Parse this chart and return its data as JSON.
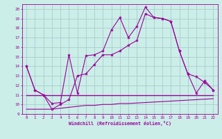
{
  "xlabel": "Windchill (Refroidissement éolien,°C)",
  "background_color": "#cceee8",
  "grid_color": "#aacccc",
  "line_color": "#990099",
  "xlim": [
    -0.5,
    22.5
  ],
  "ylim": [
    9,
    20.5
  ],
  "xticks": [
    0,
    1,
    2,
    3,
    4,
    5,
    6,
    7,
    8,
    9,
    10,
    11,
    12,
    13,
    14,
    15,
    16,
    17,
    18,
    19,
    20,
    21,
    22
  ],
  "yticks": [
    9,
    10,
    11,
    12,
    13,
    14,
    15,
    16,
    17,
    18,
    19,
    20
  ],
  "series1_x": [
    0,
    1,
    2,
    3,
    4,
    5,
    6,
    7,
    8,
    9,
    10,
    11,
    12,
    13,
    14,
    15,
    16,
    17,
    18,
    19,
    20,
    21,
    22
  ],
  "series1_y": [
    14.0,
    11.5,
    11.0,
    10.1,
    10.2,
    15.2,
    11.2,
    15.1,
    15.2,
    15.6,
    17.8,
    19.1,
    17.0,
    18.2,
    20.2,
    19.1,
    19.0,
    18.7,
    15.6,
    13.2,
    12.9,
    12.3,
    11.5
  ],
  "series2_x": [
    0,
    1,
    2,
    3,
    4,
    5,
    6,
    7,
    8,
    9,
    10,
    11,
    12,
    13,
    14,
    15,
    16,
    17,
    18,
    19,
    20,
    21,
    22
  ],
  "series2_y": [
    14.0,
    11.5,
    11.0,
    9.5,
    10.0,
    10.5,
    13.0,
    13.2,
    14.2,
    15.2,
    15.2,
    15.6,
    16.2,
    16.7,
    19.5,
    19.1,
    19.0,
    18.7,
    15.6,
    13.2,
    11.2,
    12.5,
    11.5
  ],
  "series3_x": [
    0,
    1,
    2,
    3,
    4,
    5,
    6,
    7,
    8,
    9,
    10,
    11,
    12,
    13,
    14,
    15,
    16,
    17,
    18,
    19,
    20,
    21,
    22
  ],
  "series3_y": [
    11.0,
    11.0,
    11.0,
    11.0,
    11.0,
    11.0,
    11.0,
    11.0,
    11.0,
    11.0,
    11.0,
    11.0,
    11.0,
    11.0,
    11.0,
    11.0,
    11.0,
    11.0,
    11.0,
    11.0,
    11.0,
    11.0,
    11.0
  ],
  "series4_x": [
    0,
    1,
    2,
    3,
    4,
    5,
    6,
    7,
    8,
    9,
    10,
    11,
    12,
    13,
    14,
    15,
    16,
    17,
    18,
    19,
    20,
    21,
    22
  ],
  "series4_y": [
    9.5,
    9.5,
    9.5,
    9.5,
    9.6,
    9.7,
    9.8,
    9.9,
    9.9,
    10.0,
    10.0,
    10.1,
    10.1,
    10.15,
    10.2,
    10.25,
    10.3,
    10.35,
    10.4,
    10.45,
    10.5,
    10.55,
    10.6
  ]
}
